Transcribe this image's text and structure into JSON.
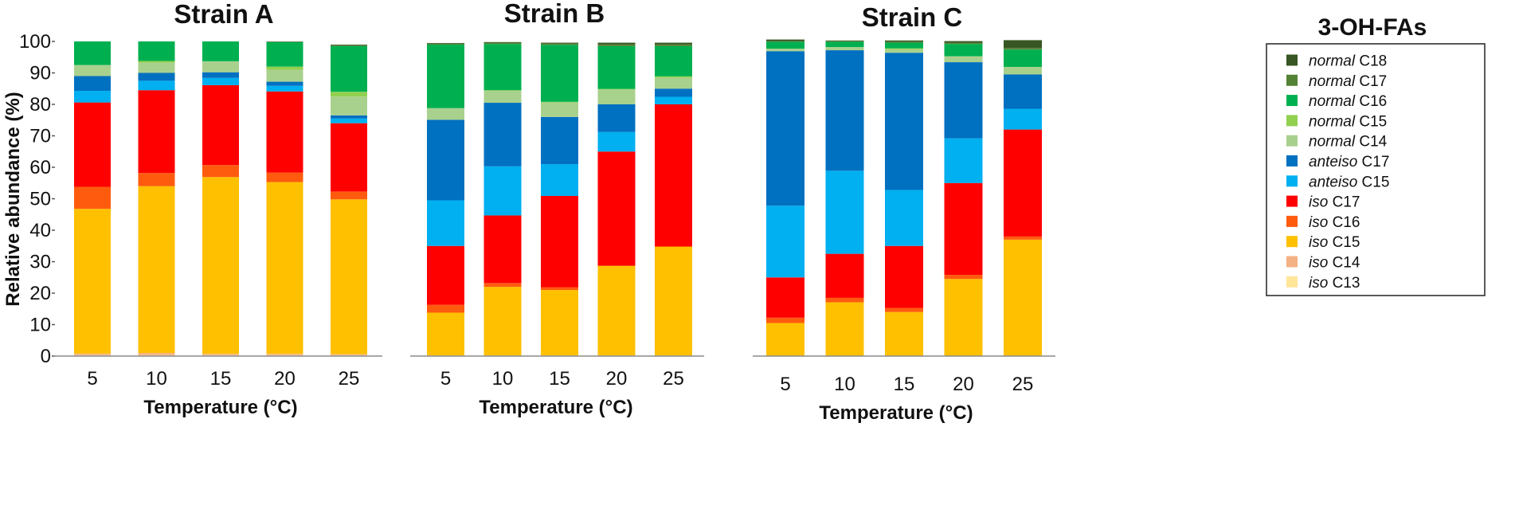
{
  "chart_data": {
    "type": "bar",
    "stacked": true,
    "xlabel": "Temperature (°C)",
    "ylabel": "Relative abundance (%)",
    "ylim": [
      0,
      100
    ],
    "yticks": [
      "0",
      "10",
      "20",
      "30",
      "40",
      "50",
      "60",
      "70",
      "80",
      "90",
      "100"
    ],
    "categories": [
      "5",
      "10",
      "15",
      "20",
      "25"
    ],
    "legend": {
      "title": "3-OH-FAs",
      "placement": "right",
      "entries": [
        {
          "prefix": "normal",
          "name": "C18",
          "color": "#375623"
        },
        {
          "prefix": "normal",
          "name": "C17",
          "color": "#548235"
        },
        {
          "prefix": "normal",
          "name": "C16",
          "color": "#00B050"
        },
        {
          "prefix": "normal",
          "name": "C15",
          "color": "#92D050"
        },
        {
          "prefix": "normal",
          "name": "C14",
          "color": "#A9D18E"
        },
        {
          "prefix": "anteiso",
          "name": "C17",
          "color": "#0070C0"
        },
        {
          "prefix": "anteiso",
          "name": "C15",
          "color": "#00B0F0"
        },
        {
          "prefix": "iso",
          "name": "C17",
          "color": "#FF0000"
        },
        {
          "prefix": "iso",
          "name": "C16",
          "color": "#FF5B0F"
        },
        {
          "prefix": "iso",
          "name": "C15",
          "color": "#FFC000"
        },
        {
          "prefix": "iso",
          "name": "C14",
          "color": "#F4B183"
        },
        {
          "prefix": "iso",
          "name": "C13",
          "color": "#FFE699"
        }
      ]
    },
    "stack_order": [
      "iso C13",
      "iso C14",
      "iso C15",
      "iso C16",
      "iso C17",
      "anteiso C15",
      "anteiso C17",
      "normal C14",
      "normal C15",
      "normal C16",
      "normal C17",
      "normal C18"
    ],
    "panels": [
      {
        "title": "Strain A",
        "series": [
          {
            "name": "iso C13",
            "color": "#FFE699",
            "values": [
              0.3,
              0.3,
              0.3,
              0.3,
              0.3
            ]
          },
          {
            "name": "iso C14",
            "color": "#F4B183",
            "values": [
              0.5,
              0.7,
              0.4,
              0.4,
              0.3
            ]
          },
          {
            "name": "iso C15",
            "color": "#FFC000",
            "values": [
              46.0,
              53.0,
              56.2,
              54.6,
              49.2
            ]
          },
          {
            "name": "iso C16",
            "color": "#FF5B0F",
            "values": [
              7.0,
              4.2,
              3.8,
              3.0,
              2.5
            ]
          },
          {
            "name": "iso C17",
            "color": "#FF0000",
            "values": [
              26.8,
              26.3,
              25.4,
              25.8,
              21.7
            ]
          },
          {
            "name": "anteiso C15",
            "color": "#00B0F0",
            "values": [
              3.7,
              3.0,
              2.3,
              1.8,
              1.5
            ]
          },
          {
            "name": "anteiso C17",
            "color": "#0070C0",
            "values": [
              4.7,
              2.5,
              1.8,
              1.3,
              1.0
            ]
          },
          {
            "name": "normal C14",
            "color": "#A9D18E",
            "values": [
              3.5,
              3.3,
              3.5,
              3.8,
              6.0
            ]
          },
          {
            "name": "normal C15",
            "color": "#92D050",
            "values": [
              0.0,
              0.5,
              0.0,
              1.0,
              1.5
            ]
          },
          {
            "name": "normal C16",
            "color": "#00B050",
            "values": [
              7.5,
              6.2,
              6.3,
              7.8,
              14.5
            ]
          },
          {
            "name": "normal C17",
            "color": "#548235",
            "values": [
              0.0,
              0.0,
              0.0,
              0.1,
              0.3
            ]
          },
          {
            "name": "normal C18",
            "color": "#375623",
            "values": [
              0.0,
              0.0,
              0.0,
              0.1,
              0.2
            ]
          }
        ]
      },
      {
        "title": "Strain B",
        "series": [
          {
            "name": "iso C13",
            "color": "#FFE699",
            "values": [
              0.0,
              0.0,
              0.0,
              0.0,
              0.0
            ]
          },
          {
            "name": "iso C14",
            "color": "#F4B183",
            "values": [
              0.2,
              0.2,
              0.2,
              0.2,
              0.2
            ]
          },
          {
            "name": "iso C15",
            "color": "#FFC000",
            "values": [
              13.6,
              21.8,
              20.8,
              28.5,
              34.6
            ]
          },
          {
            "name": "iso C16",
            "color": "#FF5B0F",
            "values": [
              2.5,
              1.2,
              0.9,
              0.0,
              0.0
            ]
          },
          {
            "name": "iso C17",
            "color": "#FF0000",
            "values": [
              18.7,
              21.5,
              29.0,
              36.3,
              45.2
            ]
          },
          {
            "name": "anteiso C15",
            "color": "#00B0F0",
            "values": [
              14.5,
              15.6,
              10.1,
              6.2,
              2.4
            ]
          },
          {
            "name": "anteiso C17",
            "color": "#0070C0",
            "values": [
              25.6,
              20.2,
              15.0,
              8.8,
              2.6
            ]
          },
          {
            "name": "normal C14",
            "color": "#A9D18E",
            "values": [
              3.7,
              3.8,
              4.6,
              4.7,
              3.5
            ]
          },
          {
            "name": "normal C15",
            "color": "#92D050",
            "values": [
              0.0,
              0.2,
              0.2,
              0.2,
              0.4
            ]
          },
          {
            "name": "normal C16",
            "color": "#00B050",
            "values": [
              20.2,
              14.7,
              18.1,
              13.6,
              9.6
            ]
          },
          {
            "name": "normal C17",
            "color": "#548235",
            "values": [
              0.3,
              0.4,
              0.4,
              0.6,
              0.6
            ]
          },
          {
            "name": "normal C18",
            "color": "#375623",
            "values": [
              0.2,
              0.2,
              0.3,
              0.5,
              0.5
            ]
          }
        ]
      },
      {
        "title": "Strain C",
        "series": [
          {
            "name": "iso C13",
            "color": "#FFE699",
            "values": [
              0.0,
              0.0,
              0.0,
              0.0,
              0.0
            ]
          },
          {
            "name": "iso C14",
            "color": "#F4B183",
            "values": [
              0.1,
              0.1,
              0.1,
              0.1,
              0.1
            ]
          },
          {
            "name": "iso C15",
            "color": "#FFC000",
            "values": [
              10.4,
              17.0,
              13.9,
              24.4,
              36.9
            ]
          },
          {
            "name": "iso C16",
            "color": "#FF5B0F",
            "values": [
              1.7,
              1.4,
              1.3,
              1.3,
              1.0
            ]
          },
          {
            "name": "iso C17",
            "color": "#FF0000",
            "values": [
              12.8,
              14.0,
              19.7,
              29.2,
              34.0
            ]
          },
          {
            "name": "anteiso C15",
            "color": "#00B0F0",
            "values": [
              22.8,
              26.4,
              17.8,
              14.2,
              6.6
            ]
          },
          {
            "name": "anteiso C17",
            "color": "#0070C0",
            "values": [
              49.1,
              38.3,
              43.6,
              24.2,
              10.9
            ]
          },
          {
            "name": "normal C14",
            "color": "#A9D18E",
            "values": [
              0.8,
              1.0,
              1.1,
              1.9,
              2.4
            ]
          },
          {
            "name": "normal C15",
            "color": "#92D050",
            "values": [
              0.0,
              0.0,
              0.3,
              0.0,
              0.0
            ]
          },
          {
            "name": "normal C16",
            "color": "#00B050",
            "values": [
              2.2,
              1.7,
              1.8,
              3.9,
              5.5
            ]
          },
          {
            "name": "normal C17",
            "color": "#548235",
            "values": [
              0.2,
              0.2,
              0.3,
              0.4,
              0.5
            ]
          },
          {
            "name": "normal C18",
            "color": "#375623",
            "values": [
              0.5,
              0.2,
              0.4,
              0.5,
              2.5
            ]
          }
        ]
      }
    ]
  }
}
